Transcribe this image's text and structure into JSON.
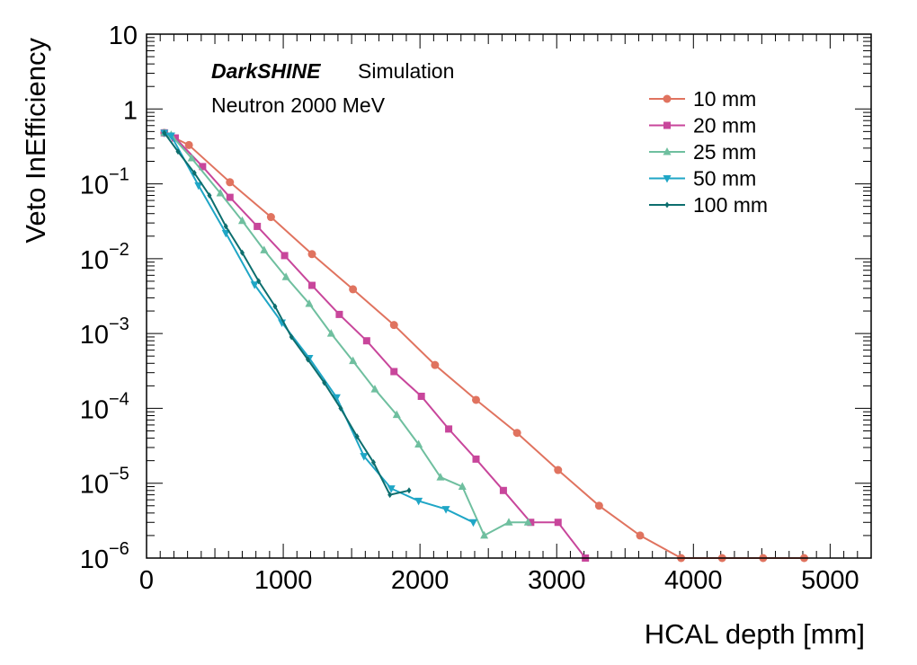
{
  "chart_data": {
    "type": "line",
    "title": "",
    "xlabel": "HCAL depth [mm]",
    "ylabel": "Veto InEfficiency",
    "xlim": [
      0,
      5300
    ],
    "ylim": [
      1e-06,
      10
    ],
    "yscale": "log",
    "x_ticks": [
      0,
      1000,
      2000,
      3000,
      4000,
      5000
    ],
    "x_tick_labels": [
      "0",
      "1000",
      "2000",
      "3000",
      "4000",
      "5000"
    ],
    "y_ticks": [
      1e-06,
      1e-05,
      0.0001,
      0.001,
      0.01,
      0.1,
      1,
      10
    ],
    "y_tick_labels": [
      {
        "base": "10",
        "exp": "−6"
      },
      {
        "base": "10",
        "exp": "−5"
      },
      {
        "base": "10",
        "exp": "−4"
      },
      {
        "base": "10",
        "exp": "−3"
      },
      {
        "base": "10",
        "exp": "−2"
      },
      {
        "base": "10",
        "exp": "−1"
      },
      {
        "base": "1",
        "exp": ""
      },
      {
        "base": "10",
        "exp": ""
      }
    ],
    "grid": false,
    "legend_position": "top-right",
    "annotations": {
      "brand": "DarkSHINE",
      "label": "Simulation",
      "particle": "Neutron 2000 MeV"
    },
    "series": [
      {
        "name": "10 mm",
        "color": "#e0735f",
        "marker": "circle",
        "x": [
          130,
          310,
          610,
          910,
          1210,
          1510,
          1810,
          2110,
          2410,
          2710,
          3010,
          3310,
          3610,
          3910,
          4210,
          4510,
          4810
        ],
        "y": [
          0.48,
          0.33,
          0.105,
          0.036,
          0.0115,
          0.0039,
          0.0013,
          0.00038,
          0.00013,
          4.7e-05,
          1.5e-05,
          5e-06,
          2e-06,
          1e-06,
          1e-06,
          1e-06,
          1e-06
        ]
      },
      {
        "name": "20 mm",
        "color": "#c8469b",
        "marker": "square",
        "x": [
          130,
          210,
          410,
          610,
          810,
          1010,
          1210,
          1410,
          1610,
          1810,
          2010,
          2210,
          2410,
          2610,
          2810,
          3010,
          3210
        ],
        "y": [
          0.48,
          0.41,
          0.17,
          0.066,
          0.027,
          0.011,
          0.0044,
          0.0018,
          0.0008,
          0.00031,
          0.000145,
          5.3e-05,
          2.1e-05,
          8e-06,
          3e-06,
          3e-06,
          1e-06
        ]
      },
      {
        "name": "25 mm",
        "color": "#6fbf9f",
        "marker": "triangle-up",
        "x": [
          130,
          180,
          330,
          540,
          700,
          860,
          1020,
          1190,
          1350,
          1510,
          1670,
          1830,
          1990,
          2150,
          2310,
          2470,
          2650,
          2790
        ],
        "y": [
          0.48,
          0.45,
          0.22,
          0.075,
          0.032,
          0.013,
          0.0057,
          0.0025,
          0.001,
          0.00043,
          0.00018,
          8.2e-05,
          3.3e-05,
          1.2e-05,
          9e-06,
          2e-06,
          3e-06,
          3e-06
        ]
      },
      {
        "name": "50 mm",
        "color": "#1fa6c6",
        "marker": "triangle-down",
        "x": [
          130,
          180,
          380,
          580,
          790,
          990,
          1190,
          1390,
          1590,
          1790,
          1990,
          2190,
          2390
        ],
        "y": [
          0.48,
          0.44,
          0.095,
          0.022,
          0.0045,
          0.0014,
          0.00047,
          0.00014,
          2.3e-05,
          8.5e-06,
          5.8e-06,
          4.5e-06,
          3e-06
        ]
      },
      {
        "name": "100 mm",
        "color": "#0d6e6e",
        "marker": "diamond",
        "x": [
          130,
          230,
          350,
          460,
          580,
          700,
          820,
          940,
          1060,
          1180,
          1300,
          1420,
          1540,
          1660,
          1780,
          1920
        ],
        "y": [
          0.48,
          0.27,
          0.14,
          0.07,
          0.027,
          0.012,
          0.005,
          0.0023,
          0.0009,
          0.00045,
          0.00022,
          0.0001,
          4.2e-05,
          1.9e-05,
          7e-06,
          8e-06
        ]
      }
    ]
  }
}
